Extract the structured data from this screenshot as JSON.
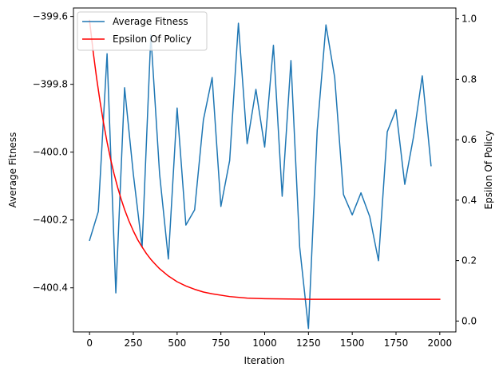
{
  "chart_data": {
    "type": "line",
    "title": "",
    "xlabel": "Iteration",
    "ylabel_left": "Average Fitness",
    "ylabel_right": "Epsilon Of Policy",
    "xlim": [
      -92,
      2092
    ],
    "ylim_left": [
      -400.53,
      -399.575
    ],
    "ylim_right": [
      -0.036,
      1.036
    ],
    "xticks": [
      0,
      250,
      500,
      750,
      1000,
      1250,
      1500,
      1750,
      2000
    ],
    "xtick_labels": [
      "0",
      "250",
      "500",
      "750",
      "1000",
      "1250",
      "1500",
      "1750",
      "2000"
    ],
    "yticks_left": [
      -400.4,
      -400.2,
      -400.0,
      -399.8,
      -399.6
    ],
    "ytick_labels_left": [
      "−400.4",
      "−400.2",
      "−400.0",
      "−399.8",
      "−399.6"
    ],
    "yticks_right": [
      0.0,
      0.2,
      0.4,
      0.6,
      0.8,
      1.0
    ],
    "ytick_labels_right": [
      "0.0",
      "0.2",
      "0.4",
      "0.6",
      "0.8",
      "1.0"
    ],
    "grid": false,
    "legend": {
      "position": "top-left",
      "entries": [
        "Average Fitness",
        "Epsilon Of Policy"
      ]
    },
    "series": [
      {
        "name": "Average Fitness",
        "axis": "left",
        "color": "#1f77b4",
        "x": [
          0,
          50,
          100,
          150,
          200,
          250,
          300,
          350,
          400,
          450,
          500,
          550,
          600,
          650,
          700,
          750,
          800,
          850,
          900,
          950,
          1000,
          1050,
          1100,
          1150,
          1200,
          1250,
          1300,
          1350,
          1400,
          1450,
          1500,
          1550,
          1600,
          1650,
          1700,
          1750,
          1800,
          1850,
          1900,
          1950
        ],
        "y": [
          -400.26,
          -400.175,
          -399.71,
          -400.415,
          -399.81,
          -400.065,
          -400.28,
          -399.655,
          -400.065,
          -400.315,
          -399.87,
          -400.215,
          -400.17,
          -399.905,
          -399.78,
          -400.16,
          -400.025,
          -399.62,
          -399.975,
          -399.815,
          -399.985,
          -399.685,
          -400.13,
          -399.73,
          -400.28,
          -400.52,
          -399.935,
          -399.625,
          -399.78,
          -400.125,
          -400.185,
          -400.12,
          -400.19,
          -400.32,
          -399.94,
          -399.875,
          -400.095,
          -399.955,
          -399.775,
          -400.04
        ]
      },
      {
        "name": "Epsilon Of Policy",
        "axis": "right",
        "color": "#ff0000",
        "x": [
          0,
          20,
          40,
          60,
          80,
          100,
          120,
          140,
          160,
          180,
          200,
          225,
          250,
          275,
          300,
          325,
          350,
          375,
          400,
          450,
          500,
          550,
          600,
          650,
          700,
          800,
          900,
          1000,
          1250,
          1500,
          1750,
          2000
        ],
        "y": [
          0.995,
          0.894,
          0.805,
          0.726,
          0.655,
          0.592,
          0.536,
          0.487,
          0.443,
          0.404,
          0.369,
          0.331,
          0.298,
          0.269,
          0.245,
          0.223,
          0.204,
          0.188,
          0.173,
          0.149,
          0.13,
          0.116,
          0.105,
          0.096,
          0.09,
          0.081,
          0.076,
          0.074,
          0.072,
          0.072,
          0.072,
          0.072
        ]
      }
    ]
  }
}
